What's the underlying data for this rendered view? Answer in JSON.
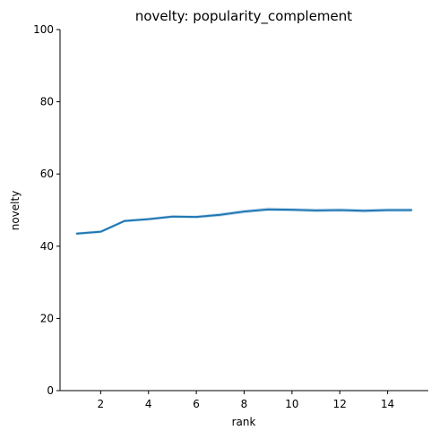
{
  "chart_data": {
    "type": "line",
    "title": "novelty: popularity_complement",
    "xlabel": "rank",
    "ylabel": "novelty",
    "xlim": [
      0.3,
      15.7
    ],
    "ylim": [
      0,
      100
    ],
    "x_ticks": [
      2,
      4,
      6,
      8,
      10,
      12,
      14
    ],
    "y_ticks": [
      0,
      20,
      40,
      60,
      80,
      100
    ],
    "grid": false,
    "legend": "none",
    "colors": {
      "line": "#1f77b4",
      "band": "#1f77b4"
    },
    "series": [
      {
        "x": [
          1,
          2,
          3,
          4,
          5,
          6,
          7,
          8,
          9,
          10,
          11,
          12,
          13,
          14,
          15
        ],
        "values": [
          43.5,
          44.0,
          47.0,
          47.5,
          48.2,
          48.1,
          48.7,
          49.6,
          50.2,
          50.1,
          49.9,
          50.0,
          49.8,
          50.0,
          50.0
        ],
        "ci_low": [
          43.1,
          43.6,
          46.6,
          47.1,
          47.8,
          47.7,
          48.2,
          49.1,
          49.7,
          49.6,
          49.4,
          49.5,
          49.3,
          49.5,
          49.5
        ],
        "ci_high": [
          43.9,
          44.4,
          47.4,
          47.9,
          48.6,
          48.5,
          49.2,
          50.1,
          50.7,
          50.6,
          50.4,
          50.5,
          50.3,
          50.5,
          50.5
        ]
      }
    ]
  }
}
